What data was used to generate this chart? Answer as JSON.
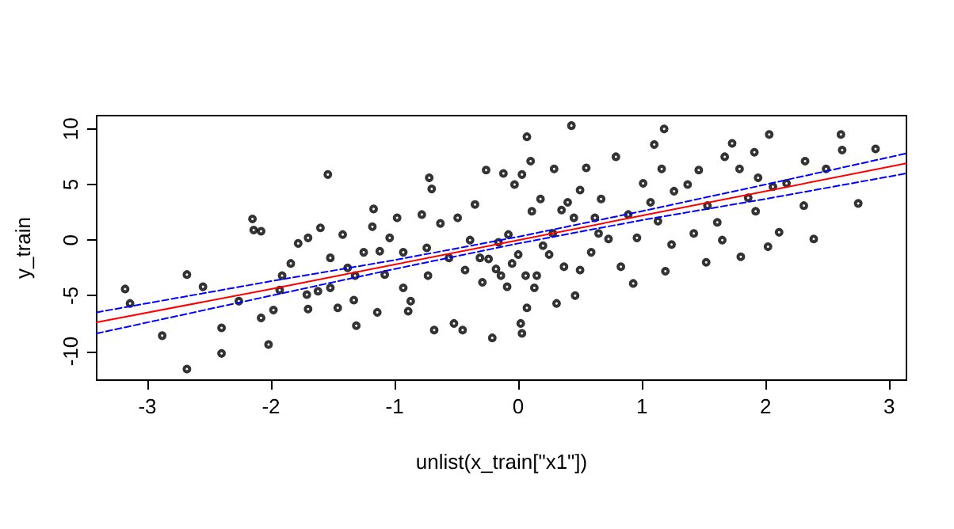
{
  "chart_data": {
    "type": "scatter",
    "xlabel": "unlist(x_train[\"x1\"])",
    "ylabel": "y_train",
    "xlim": [
      -3.41,
      3.14
    ],
    "ylim": [
      -12.6,
      11.2
    ],
    "xticks": [
      -3,
      -2,
      -1,
      0,
      1,
      2,
      3
    ],
    "yticks": [
      -10,
      -5,
      0,
      5,
      10
    ],
    "grid": false,
    "series": [
      {
        "marker": "circle",
        "color": "#000000",
        "x": [
          -3.18,
          -3.14,
          -2.88,
          -2.68,
          -2.68,
          -2.55,
          -2.4,
          -2.4,
          -2.26,
          -2.15,
          -2.14,
          -2.08,
          -2.08,
          -2.02,
          -1.98,
          -1.93,
          -1.84,
          -1.78,
          -1.7,
          -1.7,
          -1.62,
          -1.6,
          -1.54,
          -1.52,
          -1.46,
          -1.42,
          -1.38,
          -1.33,
          -1.31,
          -1.25,
          -1.17,
          -1.18,
          -1.14,
          -1.08,
          -1.04,
          -0.98,
          -0.93,
          -0.89,
          -0.87,
          -0.78,
          -0.74,
          -0.72,
          -0.7,
          -0.68,
          -0.63,
          -0.56,
          -0.52,
          -0.49,
          -0.45,
          -0.39,
          -0.35,
          -0.31,
          -0.26,
          -0.21,
          -0.24,
          -0.18,
          -0.12,
          -0.09,
          -0.08,
          -0.03,
          0.0,
          0.02,
          0.03,
          0.03,
          0.07,
          0.07,
          0.1,
          0.11,
          0.15,
          0.18,
          0.2,
          0.28,
          0.29,
          0.31,
          0.35,
          0.37,
          0.43,
          0.45,
          0.46,
          0.5,
          0.55,
          0.59,
          0.62,
          0.67,
          0.73,
          0.79,
          0.83,
          0.89,
          0.93,
          0.96,
          1.01,
          1.07,
          1.1,
          1.13,
          1.16,
          1.18,
          1.19,
          1.24,
          1.26,
          1.37,
          1.42,
          1.46,
          1.52,
          1.53,
          1.61,
          1.65,
          1.67,
          1.73,
          1.79,
          1.8,
          1.86,
          1.91,
          1.92,
          1.94,
          2.02,
          2.03,
          2.06,
          2.11,
          2.17,
          2.31,
          2.32,
          2.39,
          2.49,
          2.61,
          2.62,
          2.75,
          2.89,
          -0.43,
          -0.29,
          -0.16,
          -0.14,
          -0.05,
          0.06,
          0.13,
          0.25,
          0.4,
          0.5,
          0.65,
          -0.73,
          -0.93,
          -1.12,
          -1.32,
          -1.52,
          -1.71,
          -1.91
        ],
        "values": [
          -4.4,
          -5.7,
          -8.6,
          -3.1,
          -11.6,
          -4.2,
          -7.9,
          -10.2,
          -5.5,
          1.9,
          0.9,
          0.8,
          -7.0,
          -9.4,
          -6.3,
          -4.5,
          -2.1,
          -0.3,
          -6.2,
          0.2,
          -4.6,
          1.1,
          5.9,
          -1.6,
          -6.1,
          0.5,
          -2.5,
          -5.4,
          -7.7,
          -1.1,
          2.8,
          1.2,
          -6.5,
          -3.1,
          0.2,
          2.0,
          -1.1,
          -6.4,
          -5.5,
          2.3,
          -0.7,
          5.6,
          4.6,
          -8.1,
          1.5,
          -1.6,
          -7.5,
          2.0,
          -8.1,
          0.0,
          3.2,
          -1.6,
          6.3,
          -8.8,
          -1.7,
          -2.6,
          6.0,
          -4.2,
          0.5,
          5.0,
          -1.3,
          -7.5,
          -8.4,
          5.9,
          9.3,
          -6.1,
          7.1,
          2.6,
          -3.2,
          3.7,
          -0.5,
          0.6,
          6.4,
          -5.7,
          2.7,
          -2.4,
          10.3,
          2.0,
          -5.0,
          4.5,
          6.5,
          -1.1,
          2.0,
          3.7,
          0.1,
          7.5,
          -2.4,
          2.3,
          -3.9,
          0.2,
          5.1,
          3.4,
          8.6,
          1.7,
          6.4,
          10.0,
          -2.8,
          -0.4,
          4.4,
          5.0,
          0.6,
          6.3,
          -2.0,
          3.1,
          1.6,
          0.0,
          7.5,
          8.7,
          6.4,
          -1.5,
          3.8,
          7.9,
          2.6,
          5.6,
          -0.6,
          9.5,
          4.8,
          0.7,
          5.1,
          3.1,
          7.1,
          0.1,
          6.4,
          9.5,
          8.1,
          3.3,
          8.2,
          -2.7,
          -3.8,
          -0.2,
          -3.2,
          -2.1,
          -3.2,
          -4.3,
          -1.3,
          3.4,
          -2.7,
          0.6,
          -3.2,
          -4.3,
          -1.0,
          -3.2,
          -4.3,
          -4.9,
          -3.2
        ]
      },
      {
        "type": "line",
        "marker": "none",
        "color": "#ff0000",
        "line_style": "solid",
        "x": [
          -3.41,
          -2,
          -1,
          0,
          1,
          2,
          3.14
        ],
        "values": [
          -7.4,
          -4.4,
          -2.2,
          0,
          2.2,
          4.4,
          6.9
        ]
      },
      {
        "type": "line",
        "marker": "none",
        "color": "#0000ff",
        "line_style": "dashed",
        "x": [
          -3.41,
          -2,
          -1,
          0,
          1,
          2,
          3.14
        ],
        "values": [
          -6.5,
          -3.7,
          -1.8,
          0.3,
          2.6,
          5.0,
          7.8
        ]
      },
      {
        "type": "line",
        "marker": "none",
        "color": "#0000ff",
        "line_style": "dashed",
        "x": [
          -3.41,
          -2,
          -1,
          0,
          1,
          2,
          3.14
        ],
        "values": [
          -8.4,
          -5.0,
          -2.6,
          -0.3,
          1.8,
          3.7,
          6.0
        ]
      }
    ]
  }
}
